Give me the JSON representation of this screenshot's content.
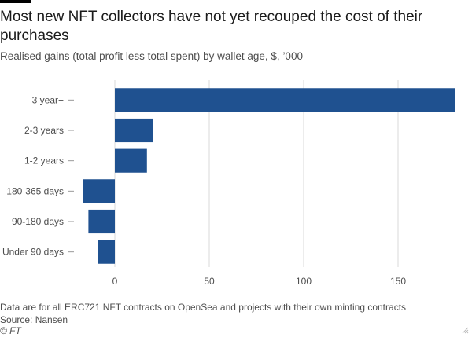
{
  "header": {
    "title": "Most new NFT collectors have not yet recouped the cost of their purchases",
    "subtitle": "Realised gains (total profit less total spent) by wallet age, $, ’000"
  },
  "footer": {
    "note": "Data are for all ERC721 NFT contracts on OpenSea and projects with their own minting contracts",
    "source": "Source: Nansen",
    "credit": "© FT"
  },
  "colors": {
    "bar": "#1f5190",
    "grid": "#d9d9d9",
    "axis_text": "#4d4d4d"
  },
  "chart_data": {
    "type": "bar",
    "orientation": "horizontal",
    "title": "Most new NFT collectors have not yet recouped the cost of their purchases",
    "subtitle": "Realised gains (total profit less total spent) by wallet age, $, ’000",
    "categories": [
      "3 year+",
      "2-3 years",
      "1-2 years",
      "180-365 days",
      "90-180 days",
      "Under 90 days"
    ],
    "values": [
      180,
      20,
      17,
      -17,
      -14,
      -9
    ],
    "xlim": [
      -20,
      180
    ],
    "xticks": [
      0,
      50,
      100,
      150
    ],
    "grid": "vertical",
    "xlabel": "",
    "ylabel": ""
  }
}
